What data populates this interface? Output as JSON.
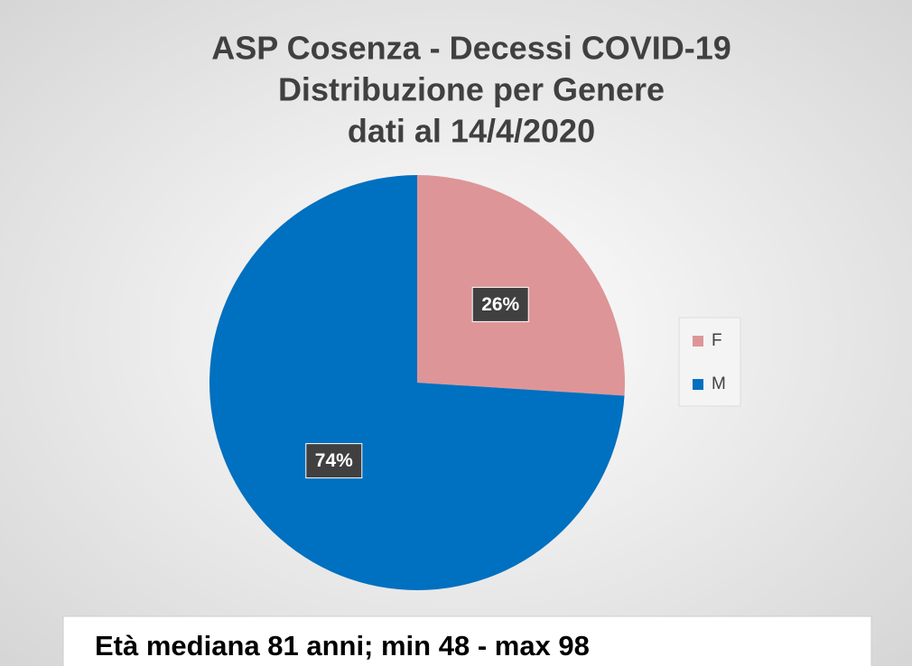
{
  "chart_data": {
    "type": "pie",
    "title": [
      "ASP Cosenza - Decessi  COVID-19",
      "Distribuzione per  Genere",
      "dati al 14/4/2020"
    ],
    "categories": [
      "F",
      "M"
    ],
    "values": [
      26,
      74
    ],
    "value_labels": [
      "26%",
      "74%"
    ],
    "colors": [
      "#de9597",
      "#0070c0"
    ],
    "legend": "right",
    "annotation": "Età mediana  81 anni; min 48 - max 98"
  }
}
